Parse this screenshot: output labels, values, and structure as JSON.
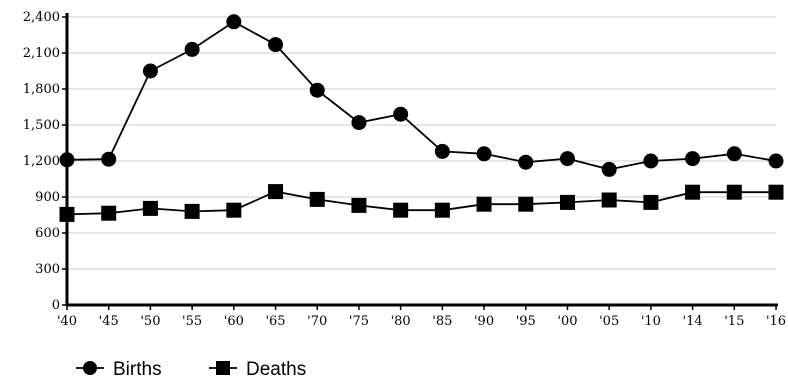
{
  "chart_data": {
    "type": "line",
    "categories": [
      "'40",
      "'45",
      "'50",
      "'55",
      "'60",
      "'65",
      "'70",
      "'75",
      "'80",
      "'85",
      "'90",
      "'95",
      "'00",
      "'05",
      "'10",
      "'14",
      "'15",
      "'16"
    ],
    "series": [
      {
        "name": "Births",
        "marker": "circle",
        "values": [
          1210,
          1215,
          1950,
          2130,
          2360,
          2170,
          1790,
          1520,
          1590,
          1280,
          1260,
          1190,
          1220,
          1130,
          1200,
          1220,
          1260,
          1200
        ]
      },
      {
        "name": "Deaths",
        "marker": "square",
        "values": [
          755,
          765,
          805,
          780,
          790,
          945,
          880,
          830,
          790,
          790,
          840,
          840,
          855,
          875,
          855,
          940,
          940,
          940
        ]
      }
    ],
    "y_ticks": [
      "0",
      "300",
      "600",
      "900",
      "1,200",
      "1,500",
      "1,800",
      "2,100",
      "2,400"
    ],
    "ylim": [
      0,
      2400
    ],
    "grid": "horizontal",
    "legend_position": "bottom-left",
    "title": "",
    "xlabel": "",
    "ylabel": ""
  },
  "colors": {
    "line": "#000000",
    "grid": "#cfcfcf",
    "axis": "#000000"
  }
}
